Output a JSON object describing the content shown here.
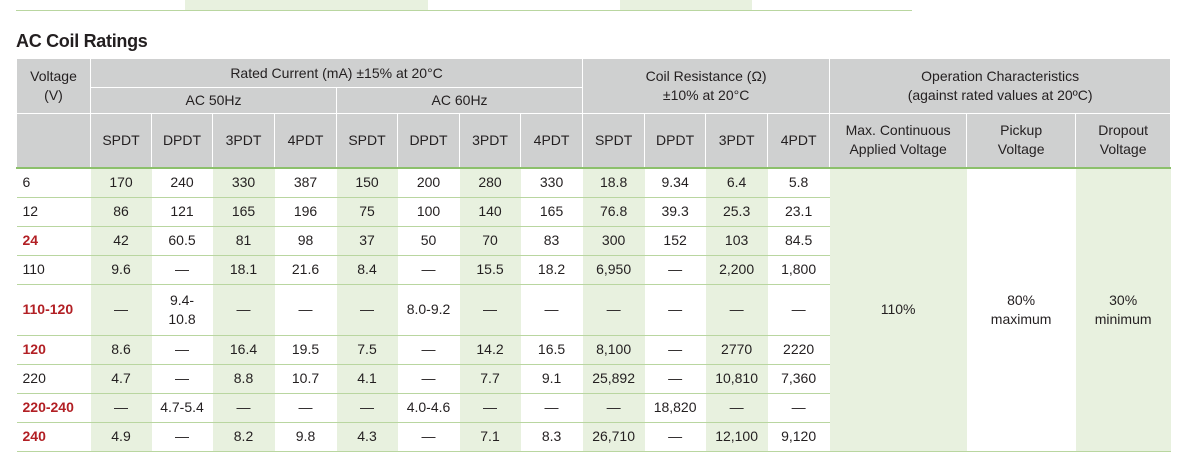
{
  "title": "AC Coil Ratings",
  "table": {
    "header": {
      "voltage": "Voltage\n(V)",
      "rated_current": "Rated Current (mA) ±15% at 20°C",
      "coil_resistance": "Coil Resistance (Ω)\n±10% at 20°C",
      "operation": "Operation Characteristics\n(against rated values at 20ºC)",
      "ac_50hz": "AC 50Hz",
      "ac_60hz": "AC 60Hz",
      "columns": [
        "SPDT",
        "DPDT",
        "3PDT",
        "4PDT",
        "SPDT",
        "DPDT",
        "3PDT",
        "4PDT",
        "SPDT",
        "DPDT",
        "3PDT",
        "4PDT"
      ],
      "operation_columns": [
        "Max. Continuous\nApplied Voltage",
        "Pickup\nVoltage",
        "Dropout\nVoltage"
      ]
    },
    "rows": [
      [
        "6",
        "170",
        "240",
        "330",
        "387",
        "150",
        "200",
        "280",
        "330",
        "18.8",
        "9.34",
        "6.4",
        "5.8"
      ],
      [
        "12",
        "86",
        "121",
        "165",
        "196",
        "75",
        "100",
        "140",
        "165",
        "76.8",
        "39.3",
        "25.3",
        "23.1"
      ],
      [
        "24",
        "42",
        "60.5",
        "81",
        "98",
        "37",
        "50",
        "70",
        "83",
        "300",
        "152",
        "103",
        "84.5"
      ],
      [
        "110",
        "9.6",
        "—",
        "18.1",
        "21.6",
        "8.4",
        "—",
        "15.5",
        "18.2",
        "6,950",
        "—",
        "2,200",
        "1,800"
      ],
      [
        "110-120",
        "—",
        "9.4-\n10.8",
        "—",
        "—",
        "—",
        "8.0-9.2",
        "—",
        "—",
        "—",
        "—",
        "—",
        "—"
      ],
      [
        "120",
        "8.6",
        "—",
        "16.4",
        "19.5",
        "7.5",
        "—",
        "14.2",
        "16.5",
        "8,100",
        "—",
        "2770",
        "2220"
      ],
      [
        "220",
        "4.7",
        "—",
        "8.8",
        "10.7",
        "4.1",
        "—",
        "7.7",
        "9.1",
        "25,892",
        "—",
        "10,810",
        "7,360"
      ],
      [
        "220-240",
        "—",
        "4.7-5.4",
        "—",
        "—",
        "—",
        "4.0-4.6",
        "—",
        "—",
        "—",
        "18,820",
        "—",
        "—"
      ],
      [
        "240",
        "4.9",
        "—",
        "8.2",
        "9.8",
        "4.3",
        "—",
        "7.1",
        "8.3",
        "26,710",
        "—",
        "12,100",
        "9,120"
      ]
    ],
    "operation_values": [
      "110%",
      "80%\nmaximum",
      "30%\nminimum"
    ]
  }
}
